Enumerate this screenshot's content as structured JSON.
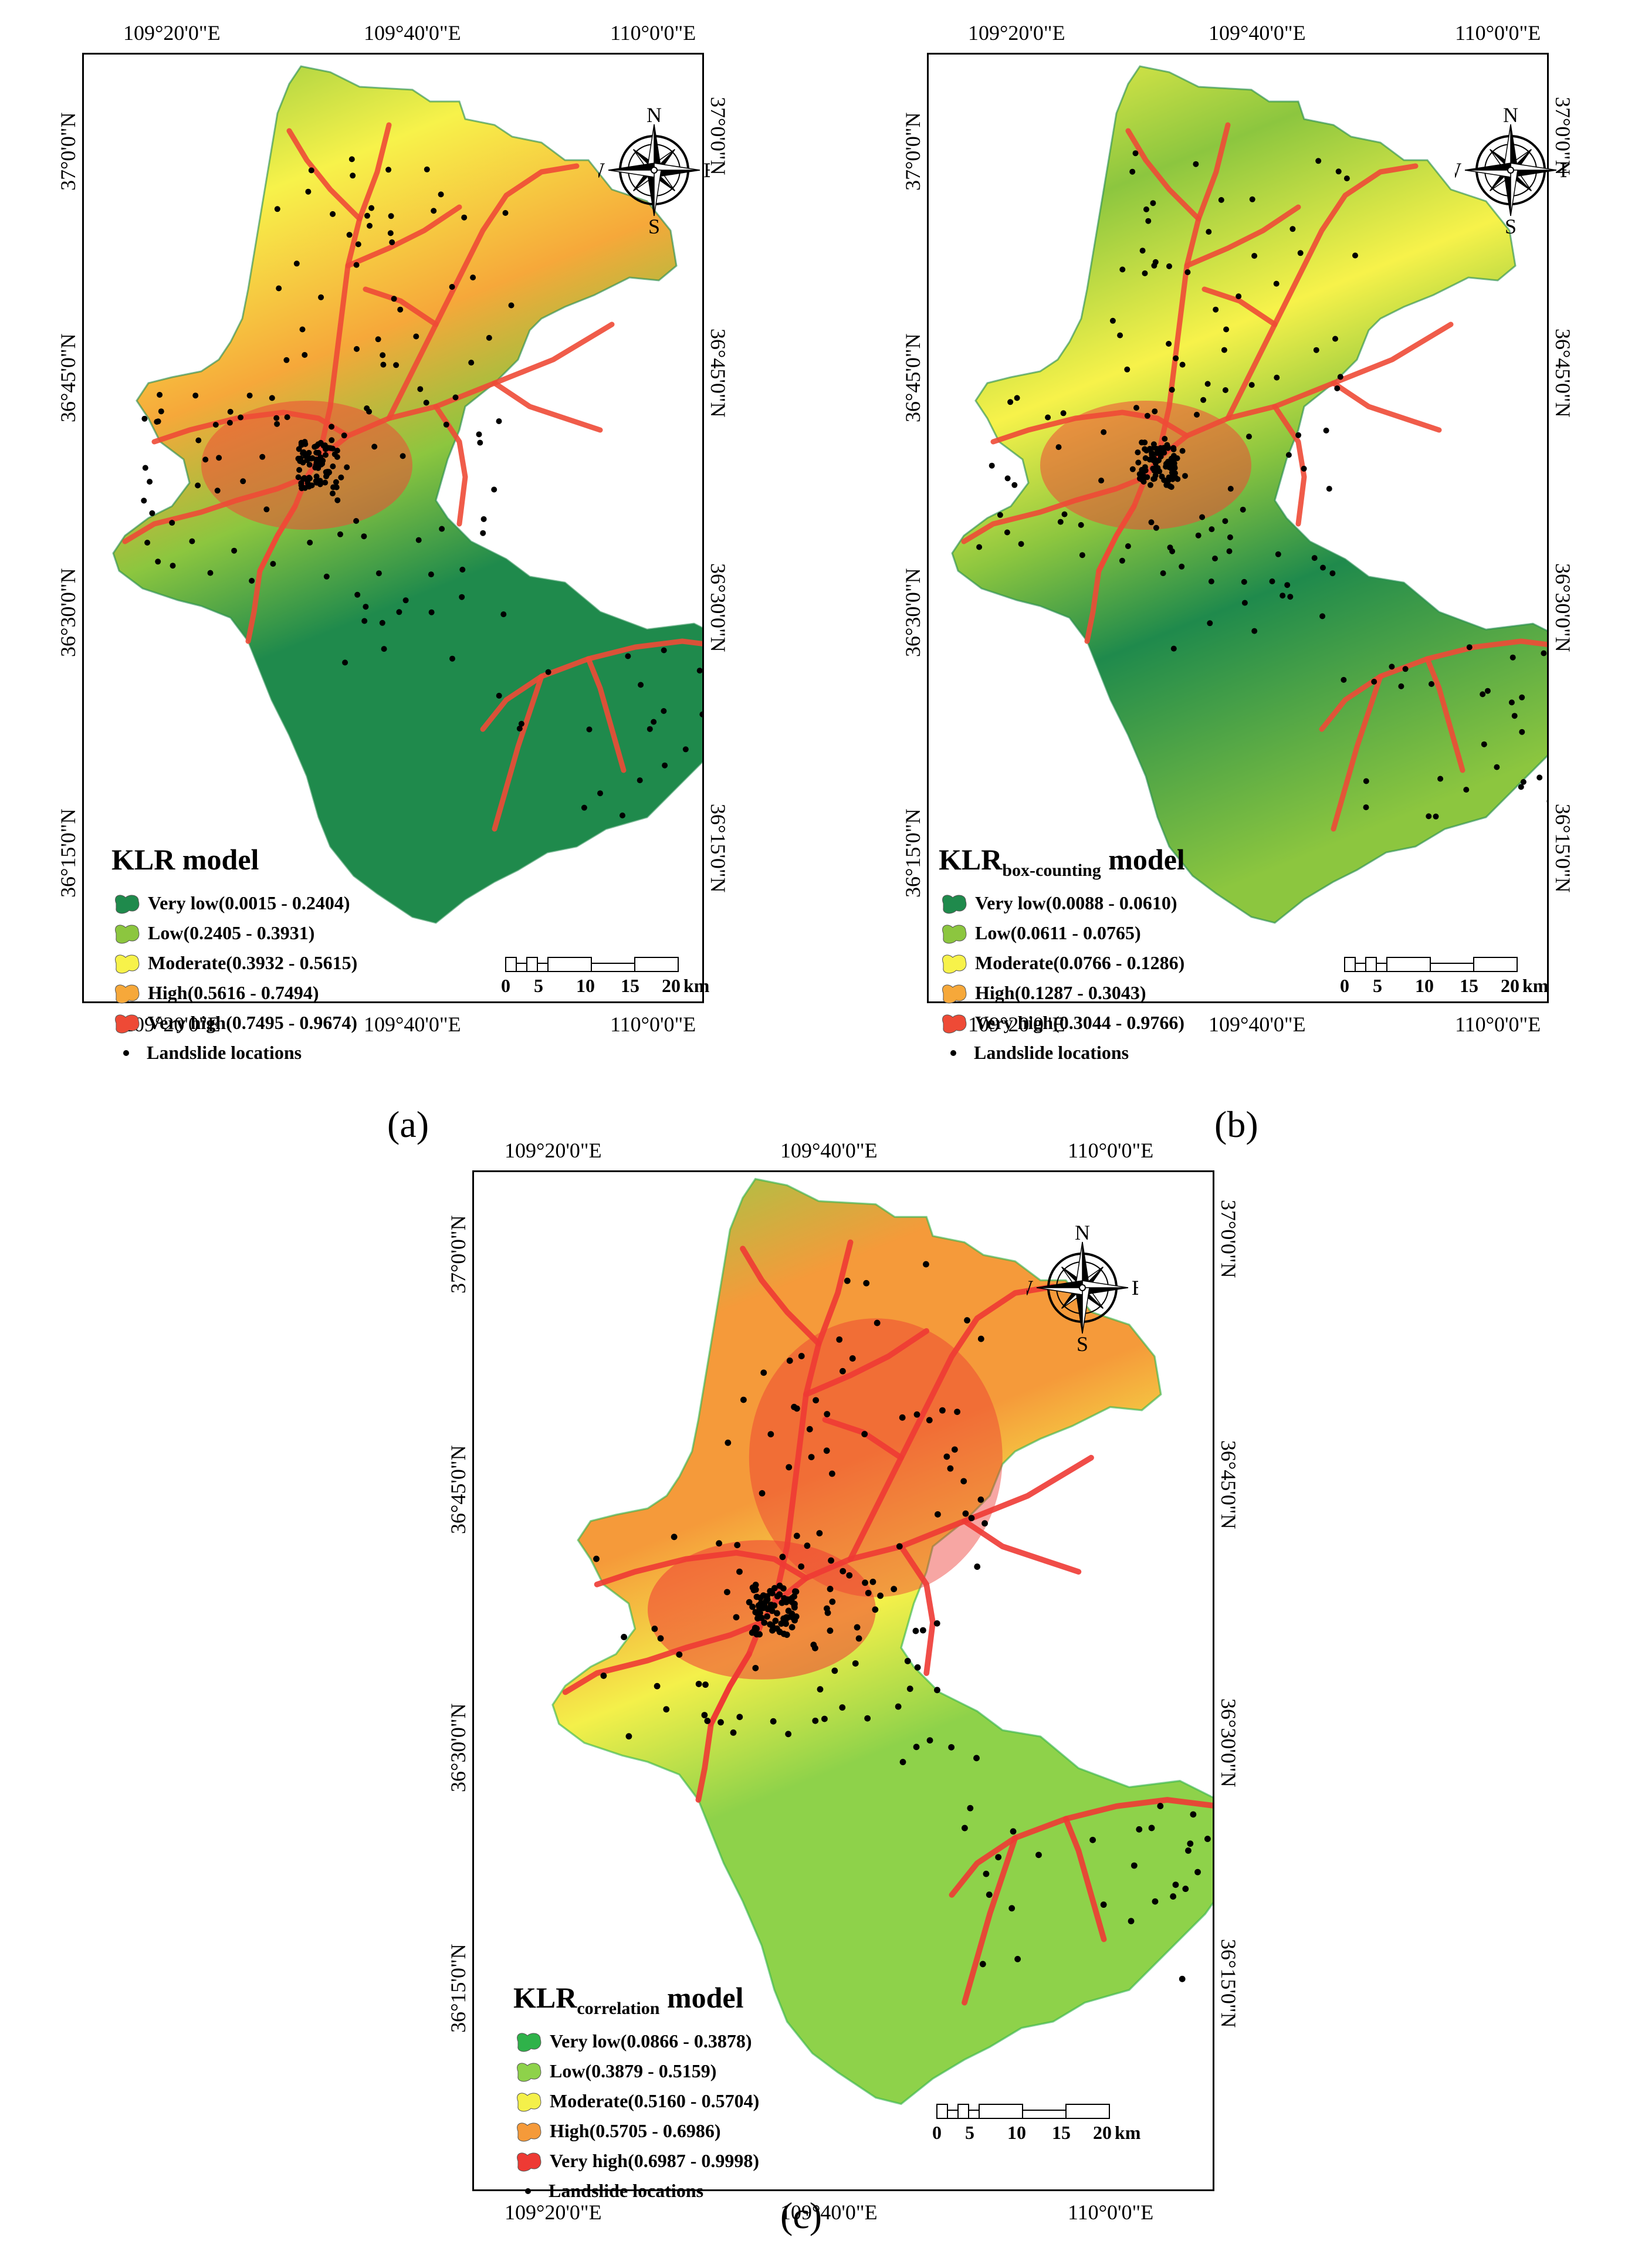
{
  "figure": {
    "panels": [
      {
        "id": "a",
        "caption": "(a)",
        "legend_title_main": "KLR",
        "legend_title_sub": "",
        "legend_title_tail": " model",
        "classes": [
          {
            "label": "Very low(0.0015 - 0.2404)",
            "color": "#1f8a4c"
          },
          {
            "label": "Low(0.2405 - 0.3931)",
            "color": "#8cc63f"
          },
          {
            "label": "Moderate(0.3932 - 0.5615)",
            "color": "#f7f24a"
          },
          {
            "label": "High(0.5616 - 0.7494)",
            "color": "#f6a83a"
          },
          {
            "label": "Very high(0.7495 - 0.9674)",
            "color": "#ee4a36"
          }
        ],
        "points_label": "Landslide locations"
      },
      {
        "id": "b",
        "caption": "(b)",
        "legend_title_main": "KLR",
        "legend_title_sub": "box-counting",
        "legend_title_tail": " model",
        "classes": [
          {
            "label": "Very low(0.0088 - 0.0610)",
            "color": "#1f8a4c"
          },
          {
            "label": "Low(0.0611 - 0.0765)",
            "color": "#8cc63f"
          },
          {
            "label": "Moderate(0.0766 - 0.1286)",
            "color": "#f7f24a"
          },
          {
            "label": "High(0.1287 - 0.3043)",
            "color": "#f6a83a"
          },
          {
            "label": "Very high(0.3044 - 0.9766)",
            "color": "#ee4a36"
          }
        ],
        "points_label": "Landslide locations"
      },
      {
        "id": "c",
        "caption": "(c)",
        "legend_title_main": "KLR",
        "legend_title_sub": "correlation",
        "legend_title_tail": " model",
        "classes": [
          {
            "label": "Very low(0.0866 - 0.3878)",
            "color": "#2fb24a"
          },
          {
            "label": "Low(0.3879 - 0.5159)",
            "color": "#8ed24a"
          },
          {
            "label": "Moderate(0.5160 - 0.5704)",
            "color": "#f4f04a"
          },
          {
            "label": "High(0.5705 - 0.6986)",
            "color": "#f59a3a"
          },
          {
            "label": "Very high(0.6987 - 0.9998)",
            "color": "#ee3a34"
          }
        ],
        "points_label": "Landslide locations"
      }
    ],
    "coords": {
      "lon": [
        "109°20'0\"E",
        "109°40'0\"E",
        "110°0'0\"E"
      ],
      "lat": [
        "37°0'0\"N",
        "36°45'0\"N",
        "36°30'0\"N",
        "36°15'0\"N"
      ]
    },
    "compass": {
      "n": "N",
      "s": "S",
      "e": "E",
      "w": "W"
    },
    "scalebar": {
      "ticks": [
        "0",
        "5",
        "10",
        "15",
        "20"
      ],
      "unit": "km"
    }
  }
}
